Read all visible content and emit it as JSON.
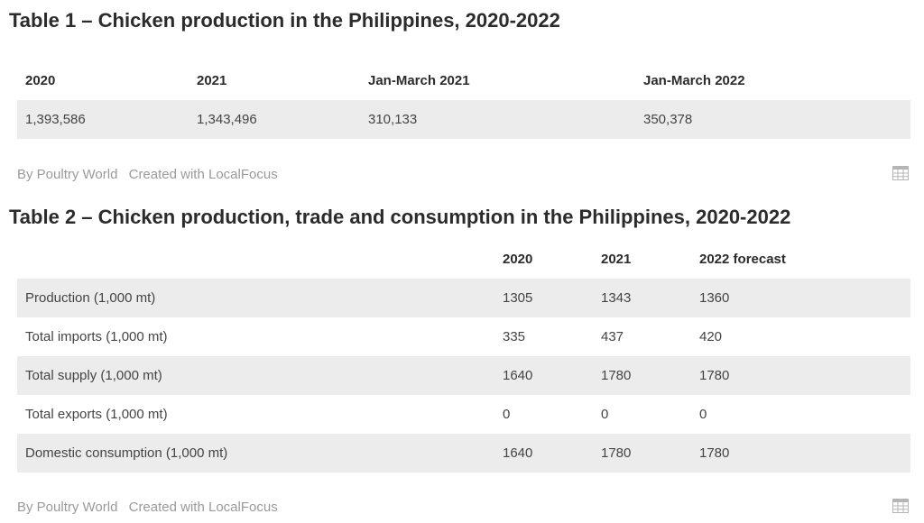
{
  "table1": {
    "title": "Table 1 – Chicken production in the Philippines, 2020-2022",
    "headers": [
      "2020",
      "2021",
      "Jan-March 2021",
      "Jan-March 2022"
    ],
    "rows": [
      [
        "1,393,586",
        "1,343,496",
        "310,133",
        "350,378"
      ]
    ],
    "footer": {
      "by": "By Poultry World",
      "created": "Created with LocalFocus"
    },
    "icon": "table-grid-icon"
  },
  "table2": {
    "title": "Table 2 – Chicken production, trade and consumption in the Philippines, 2020-2022",
    "headers": [
      "",
      "2020",
      "2021",
      "2022 forecast"
    ],
    "rows": [
      [
        "Production (1,000 mt)",
        "1305",
        "1343",
        "1360"
      ],
      [
        "Total imports (1,000 mt)",
        "335",
        "437",
        "420"
      ],
      [
        "Total supply (1,000 mt)",
        "1640",
        "1780",
        "1780"
      ],
      [
        "Total exports (1,000 mt)",
        "0",
        "0",
        "0"
      ],
      [
        "Domestic consumption (1,000 mt)",
        "1640",
        "1780",
        "1780"
      ]
    ],
    "footer": {
      "by": "By Poultry World",
      "created": "Created with LocalFocus"
    },
    "icon": "table-grid-icon"
  },
  "colors": {
    "row_shade": "#ececec",
    "footer_text": "#9a9a9a",
    "title_text": "#2b2b2b"
  }
}
